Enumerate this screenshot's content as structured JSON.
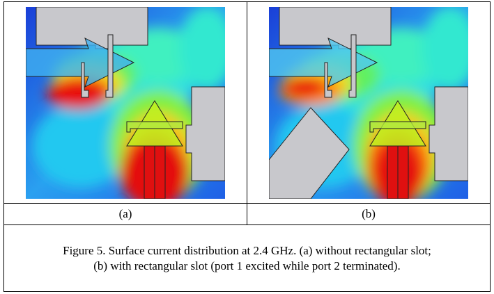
{
  "figure": {
    "panels": [
      {
        "label": "(a)"
      },
      {
        "label": "(b)"
      }
    ],
    "caption": {
      "lines": [
        "Figure 5. Surface current distribution at 2.4 GHz. (a) without rectangular slot;",
        "(b) with rectangular slot (port 1 excited while port 2 terminated)."
      ]
    }
  }
}
